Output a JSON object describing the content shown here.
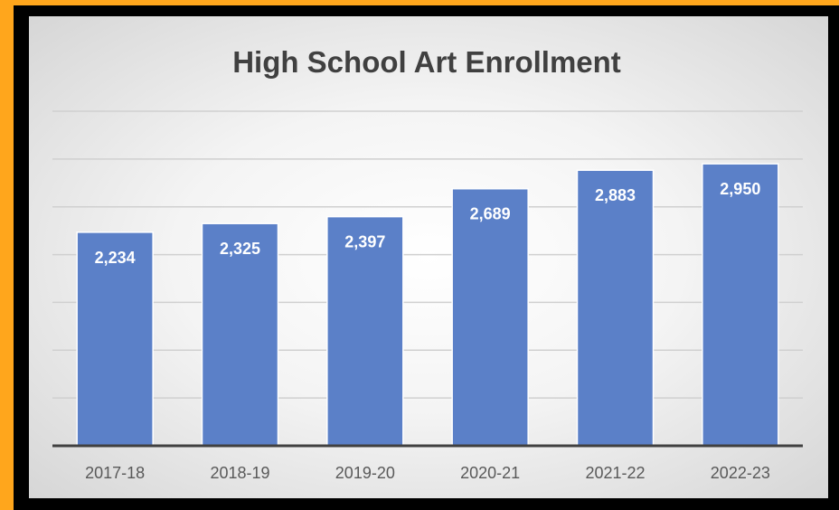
{
  "chart_data": {
    "type": "bar",
    "title": "High School Art Enrollment",
    "categories": [
      "2017-18",
      "2018-19",
      "2019-20",
      "2020-21",
      "2021-22",
      "2022-23"
    ],
    "values": [
      2234,
      2325,
      2397,
      2689,
      2883,
      2950
    ],
    "value_labels": [
      "2,234",
      "2,325",
      "2,397",
      "2,689",
      "2,883",
      "2,950"
    ],
    "xlabel": "",
    "ylabel": "",
    "ylim": [
      0,
      3500
    ],
    "grid": true,
    "legend": "none",
    "colors": {
      "bar": "#5b80c8",
      "bar_edge": "#ffffff",
      "gridline": "#d0d0d0",
      "axis": "#404040",
      "title": "#404040",
      "tick_label": "#595959",
      "data_label": "#ffffff",
      "outer_border": "#ffa61c",
      "frame": "#000000"
    }
  }
}
